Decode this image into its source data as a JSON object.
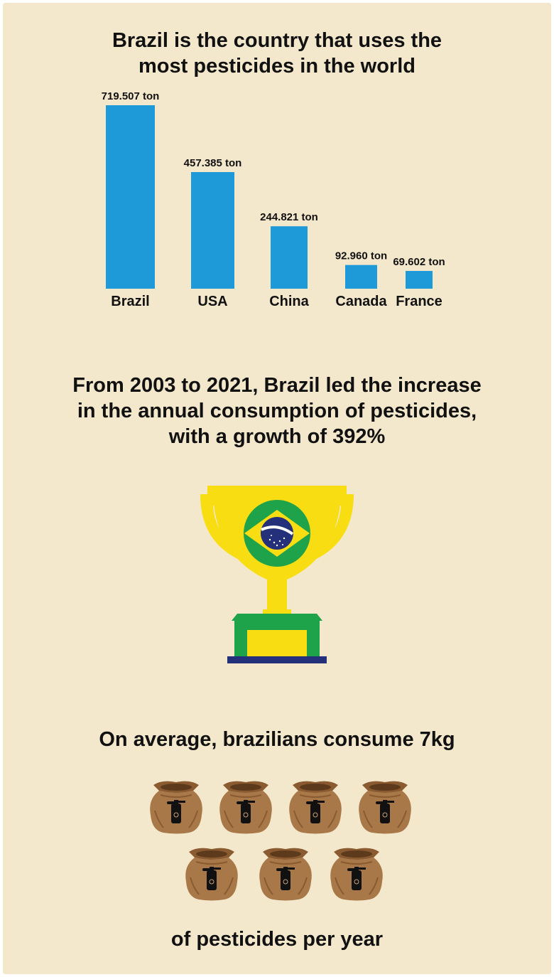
{
  "headline": {
    "line1": "Brazil is the country that uses the",
    "line2": "most pesticides in the world"
  },
  "growth_headline": {
    "line1": "From 2003 to 2021, Brazil led the increase",
    "line2": "in the annual consumption of pesticides,",
    "line3": "with a growth of 392%"
  },
  "consumption_headline": "On average, brazilians consume 7kg",
  "consumption_footer": "of pesticides per year",
  "bag_count": 7,
  "chart_data": {
    "type": "bar",
    "title": "Brazil is the country that uses the most pesticides in the world",
    "categories": [
      "Brazil",
      "USA",
      "China",
      "Canada",
      "France"
    ],
    "values": [
      719507,
      457385,
      244821,
      92960,
      69602
    ],
    "value_labels": [
      "719.507 ton",
      "457.385 ton",
      "244.821 ton",
      "92.960 ton",
      "69.602 ton"
    ],
    "unit": "ton",
    "ylim": [
      0,
      719507
    ],
    "xlabel": "",
    "ylabel": "",
    "grid": false,
    "bar_color": "#1f9ad8"
  },
  "colors": {
    "background": "#f4e8cc",
    "bar": "#1f9ad8",
    "trophy_gold": "#f7dd12",
    "flag_green": "#1ea24a",
    "flag_blue": "#24307a",
    "bag_brown": "#a87848",
    "text": "#111111"
  }
}
